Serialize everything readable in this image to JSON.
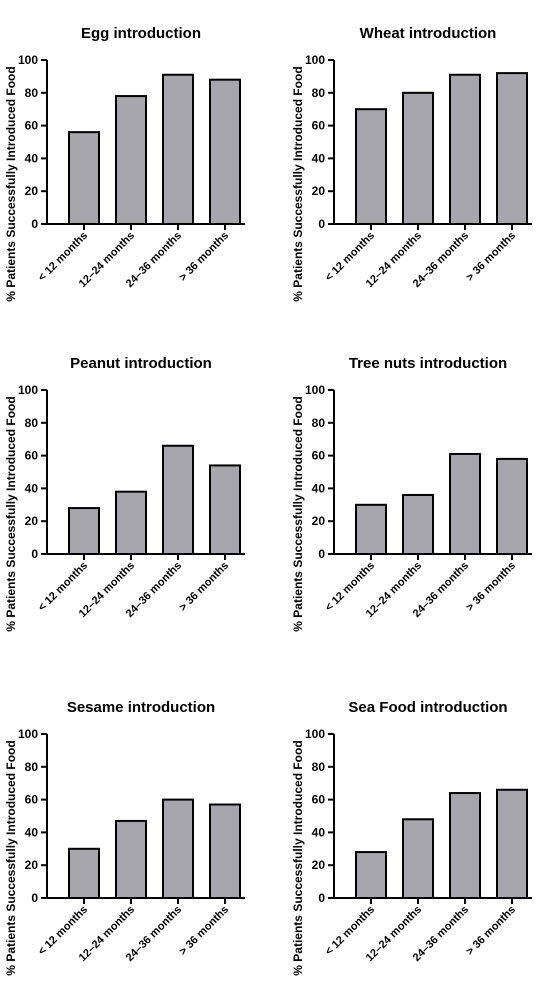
{
  "chart_data": [
    {
      "type": "bar",
      "title": "Egg introduction",
      "ylabel": "% Patients Successfully Introduced Food",
      "categories": [
        "< 12 months",
        "12–24 months",
        "24–36 months",
        "> 36 months"
      ],
      "values": [
        56,
        78,
        91,
        88
      ],
      "ylim": [
        0,
        100
      ],
      "yticks": [
        0,
        20,
        40,
        60,
        80,
        100
      ],
      "grid": false,
      "legend": "none"
    },
    {
      "type": "bar",
      "title": "Wheat  introduction",
      "ylabel": "% Patients Successfully Introduced Food",
      "categories": [
        "< 12 months",
        "12–24 months",
        "24–36 months",
        "> 36 months"
      ],
      "values": [
        70,
        80,
        91,
        92
      ],
      "ylim": [
        0,
        100
      ],
      "yticks": [
        0,
        20,
        40,
        60,
        80,
        100
      ],
      "grid": false,
      "legend": "none"
    },
    {
      "type": "bar",
      "title": "Peanut introduction",
      "ylabel": "% Patients Successfully Introduced Food",
      "categories": [
        "< 12 months",
        "12–24 months",
        "24–36 months",
        "> 36 months"
      ],
      "values": [
        28,
        38,
        66,
        54
      ],
      "ylim": [
        0,
        100
      ],
      "yticks": [
        0,
        20,
        40,
        60,
        80,
        100
      ],
      "grid": false,
      "legend": "none"
    },
    {
      "type": "bar",
      "title": "Tree nuts introduction",
      "ylabel": "% Patients Successfully Introduced Food",
      "categories": [
        "< 12 months",
        "12–24 months",
        "24–36 months",
        "> 36 months"
      ],
      "values": [
        30,
        36,
        61,
        58
      ],
      "ylim": [
        0,
        100
      ],
      "yticks": [
        0,
        20,
        40,
        60,
        80,
        100
      ],
      "grid": false,
      "legend": "none"
    },
    {
      "type": "bar",
      "title": "Sesame introduction",
      "ylabel": "% Patients Successfully Introduced Food",
      "categories": [
        "< 12 months",
        "12–24 months",
        "24–36 months",
        "> 36 months"
      ],
      "values": [
        30,
        47,
        60,
        57
      ],
      "ylim": [
        0,
        100
      ],
      "yticks": [
        0,
        20,
        40,
        60,
        80,
        100
      ],
      "grid": false,
      "legend": "none"
    },
    {
      "type": "bar",
      "title": "Sea Food introduction",
      "ylabel": "% Patients Successfully Introduced Food",
      "categories": [
        "< 12 months",
        "12–24 months",
        "24–36 months",
        "> 36 months"
      ],
      "values": [
        28,
        48,
        64,
        66
      ],
      "ylim": [
        0,
        100
      ],
      "yticks": [
        0,
        20,
        40,
        60,
        80,
        100
      ],
      "grid": false,
      "legend": "none"
    }
  ],
  "colors": {
    "bar_fill": "#a6a6ac",
    "bar_stroke": "#000000"
  }
}
